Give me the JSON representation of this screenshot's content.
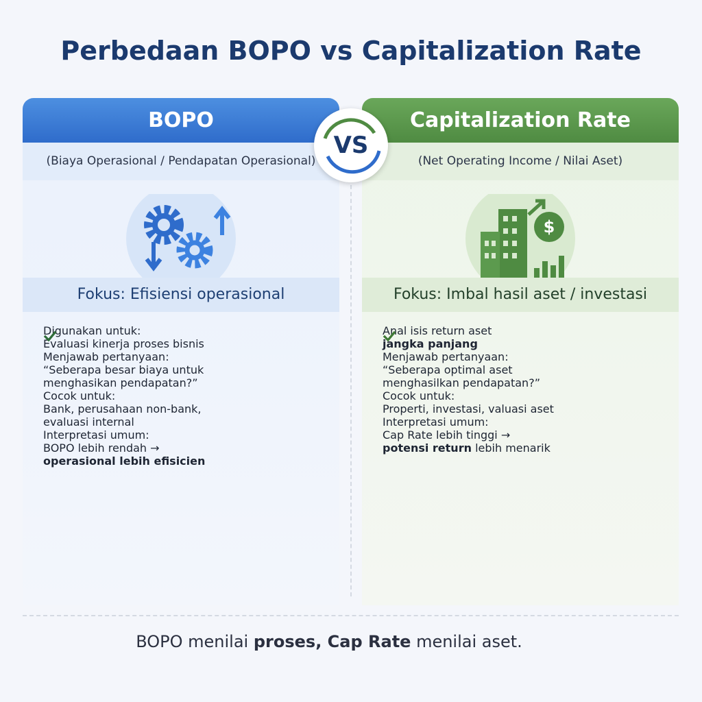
{
  "title": "Perbedaan BOPO vs Capitalization Rate",
  "vs": "VS",
  "columns": [
    {
      "header": "BOPO",
      "formula": "(Biaya Operasional / Pendapatan Operasional)",
      "focus": "Fokus: Efisiensi operasional",
      "items": [
        {
          "label": "Digunakan untuk:",
          "lines": [
            [
              {
                "text": "Evaluasi kinerja proses bisnis",
                "bold": false
              }
            ]
          ]
        },
        {
          "label": "Menjawab pertanyaan:",
          "lines": [
            [
              {
                "text": "“Seberapa besar biaya untuk",
                "bold": false
              }
            ],
            [
              {
                "text": "menghasikan pendapatan?”",
                "bold": false
              }
            ]
          ]
        },
        {
          "label": "Cocok untuk:",
          "lines": [
            [
              {
                "text": "Bank, perusahaan non-bank,",
                "bold": false
              }
            ],
            [
              {
                "text": "evaluasi internal",
                "bold": false
              }
            ]
          ]
        },
        {
          "label": "Interpretasi umum:",
          "lines": [
            [
              {
                "text": "BOPO lebih rendah →",
                "bold": false
              }
            ],
            [
              {
                "text": "operasional lebih efisicien",
                "bold": true
              }
            ]
          ]
        }
      ]
    },
    {
      "header": "Capitalization Rate",
      "formula": "(Net Operating Income / Nilai Aset)",
      "focus": "Fokus: Imbal hasil aset / investasi",
      "items": [
        {
          "label": "Anal isis return aset",
          "lines": [
            [
              {
                "text": "jangka panjang",
                "bold": true
              }
            ]
          ]
        },
        {
          "label": "Menjawab pertanyaan:",
          "lines": [
            [
              {
                "text": "“Seberapa optimal aset",
                "bold": false
              }
            ],
            [
              {
                "text": "menghasilkan pendapatan?”",
                "bold": false
              }
            ]
          ]
        },
        {
          "label": "Cocok untuk:",
          "lines": [
            [
              {
                "text": "Properti, investasi, valuasi aset",
                "bold": false
              }
            ]
          ]
        },
        {
          "label": "Interpretasi umum:",
          "lines": [
            [
              {
                "text": "Cap Rate lebih tinggi →",
                "bold": false
              }
            ],
            [
              {
                "text": "potensi return",
                "bold": true
              },
              {
                "text": " lebih menarik",
                "bold": false
              }
            ]
          ]
        }
      ]
    }
  ],
  "footer": [
    {
      "text": "BOPO menilai ",
      "bold": false
    },
    {
      "text": "proses, Cap Rate",
      "bold": true
    },
    {
      "text": " menilai aset.",
      "bold": false
    }
  ]
}
